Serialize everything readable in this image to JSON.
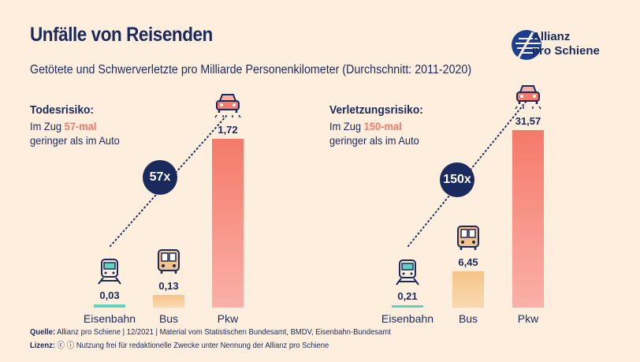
{
  "title": "Unfälle von Reisenden",
  "subtitle": "Getötete und Schwerverletzte pro Milliarde Personenkilometer (Durchschnitt: 2011-2020)",
  "logo": {
    "line1": "Allianz",
    "line2": "pro Schiene"
  },
  "left": {
    "heading": "Todesrisiko:",
    "line1_prefix": "Im Zug ",
    "highlight": "57-mal",
    "line2": "geringer als im Auto",
    "bubble": "57x"
  },
  "right": {
    "heading": "Verletzungsrisiko:",
    "line1_prefix": "Im Zug ",
    "highlight": "150-mal",
    "line2": "geringer als im Auto",
    "bubble": "150x"
  },
  "footer": {
    "source_label": "Quelle:",
    "source": "Allianz pro Schiene | 12/2021 | Material vom Statistischen Bundesamt, BMDV, Eisenbahn-Bundesamt",
    "license_label": "Lizenz:",
    "license": "Nutzung frei für redaktionelle Zwecke unter Nennung der Allianz pro Schiene"
  },
  "colors": {
    "background": "#fdeedd",
    "navy": "#1b2a5c",
    "highlight": "#f27a6a",
    "rail": "#5fd3c0",
    "bus": "#f6c48a",
    "car": "#f47a6a"
  },
  "chart_data": [
    {
      "type": "bar",
      "title": "Todesrisiko:",
      "categories": [
        "Eisenbahn",
        "Bus",
        "Pkw"
      ],
      "values": [
        0.03,
        0.13,
        1.72
      ],
      "labels": [
        "0,03",
        "0,13",
        "1,72"
      ],
      "icons": [
        "train-icon",
        "bus-icon",
        "car-icon"
      ]
    },
    {
      "type": "bar",
      "title": "Verletzungsrisiko:",
      "categories": [
        "Eisenbahn",
        "Bus",
        "Pkw"
      ],
      "values": [
        0.21,
        6.45,
        31.57
      ],
      "labels": [
        "0,21",
        "6,45",
        "31,57"
      ],
      "icons": [
        "train-icon",
        "bus-icon",
        "car-icon"
      ]
    }
  ]
}
